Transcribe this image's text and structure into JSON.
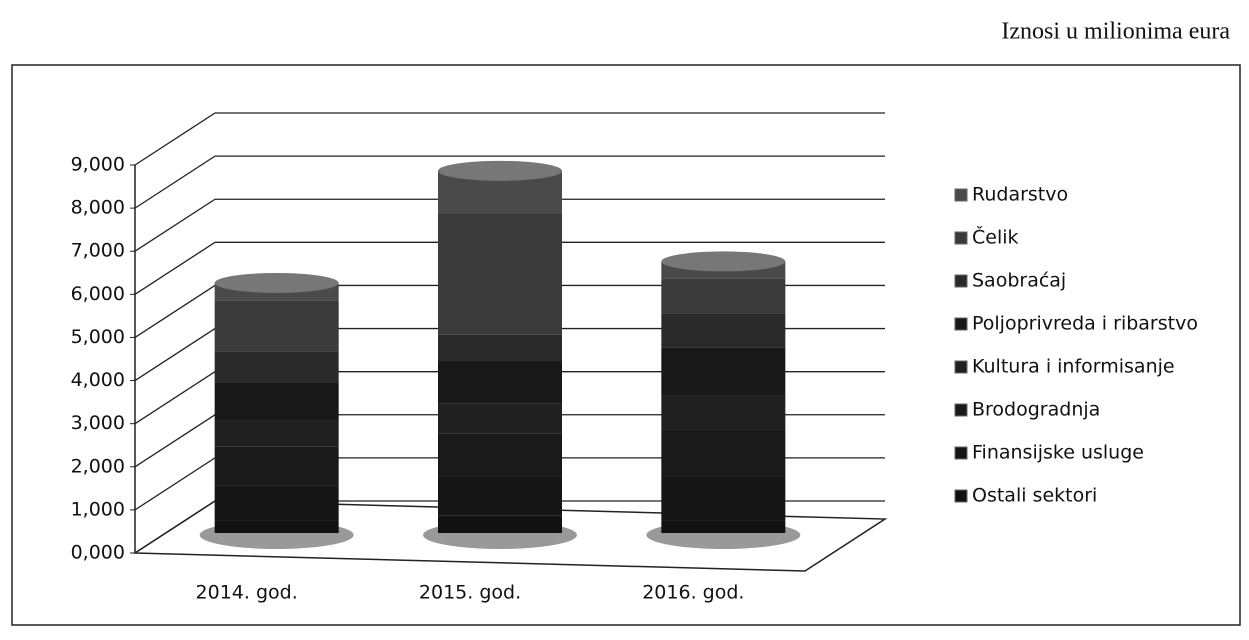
{
  "chart_data": {
    "type": "bar3d-stacked",
    "subtitle": "Iznosi u milionima eura",
    "categories": [
      "2014. god.",
      "2015. god.",
      "2016. god."
    ],
    "series": [
      {
        "name": "Ostali sektori",
        "color": "#111111",
        "values": [
          0.3,
          0.4,
          0.3
        ]
      },
      {
        "name": "Finansijske usluge",
        "color": "#151515",
        "values": [
          0.8,
          0.9,
          1.0
        ]
      },
      {
        "name": "Brodogradnja",
        "color": "#1a1a1a",
        "values": [
          0.9,
          1.0,
          1.1
        ]
      },
      {
        "name": "Kultura i informisanje",
        "color": "#202020",
        "values": [
          0.6,
          0.7,
          0.8
        ]
      },
      {
        "name": "Poljoprivreda i ribarstvo",
        "color": "#181818",
        "values": [
          0.9,
          1.0,
          1.1
        ]
      },
      {
        "name": "Saobraćaj",
        "color": "#2a2a2a",
        "values": [
          0.7,
          0.6,
          0.8
        ]
      },
      {
        "name": "Čelik",
        "color": "#3a3a3a",
        "values": [
          1.2,
          2.8,
          0.8
        ]
      },
      {
        "name": "Rudarstvo",
        "color": "#4a4a4a",
        "values": [
          0.4,
          1.0,
          0.4
        ]
      }
    ],
    "ylim": [
      0,
      9
    ],
    "yticks": [
      {
        "value": 0,
        "label": "0,000"
      },
      {
        "value": 1,
        "label": "1,000"
      },
      {
        "value": 2,
        "label": "2,000"
      },
      {
        "value": 3,
        "label": "3,000"
      },
      {
        "value": 4,
        "label": "4,000"
      },
      {
        "value": 5,
        "label": "5,000"
      },
      {
        "value": 6,
        "label": "6,000"
      },
      {
        "value": 7,
        "label": "7,000"
      },
      {
        "value": 8,
        "label": "8,000"
      },
      {
        "value": 9,
        "label": "9,000"
      }
    ],
    "grid": true,
    "legend": "right"
  }
}
